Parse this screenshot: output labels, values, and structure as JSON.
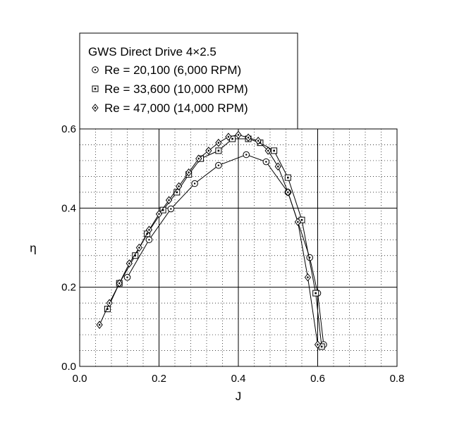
{
  "chart_data": {
    "type": "line",
    "xlabel": "J",
    "ylabel": "η",
    "xlim": [
      0,
      0.8
    ],
    "ylim": [
      0,
      0.6
    ],
    "xticks": [
      "0.0",
      "0.2",
      "0.4",
      "0.6",
      "0.8"
    ],
    "yticks": [
      "0.0",
      "0.2",
      "0.4",
      "0.6"
    ],
    "grid": true,
    "legend_position": "top-left",
    "legend_title": "GWS Direct Drive 4×2.5",
    "series": [
      {
        "name": "Re = 20,100 (6,000 RPM)",
        "marker": "circle",
        "x": [
          0.12,
          0.175,
          0.23,
          0.29,
          0.35,
          0.42,
          0.47,
          0.525,
          0.58,
          0.6,
          0.615
        ],
        "y": [
          0.225,
          0.32,
          0.398,
          0.462,
          0.508,
          0.535,
          0.517,
          0.44,
          0.275,
          0.185,
          0.055
        ]
      },
      {
        "name": "Re = 33,600 (10,000 RPM)",
        "marker": "square",
        "x": [
          0.07,
          0.1,
          0.14,
          0.17,
          0.21,
          0.245,
          0.275,
          0.305,
          0.35,
          0.385,
          0.425,
          0.455,
          0.49,
          0.525,
          0.56,
          0.595,
          0.61
        ],
        "y": [
          0.145,
          0.21,
          0.28,
          0.335,
          0.395,
          0.44,
          0.485,
          0.525,
          0.545,
          0.575,
          0.575,
          0.565,
          0.545,
          0.477,
          0.37,
          0.185,
          0.05
        ]
      },
      {
        "name": "Re = 47,000 (14,000 RPM)",
        "marker": "diamond",
        "x": [
          0.05,
          0.075,
          0.1,
          0.125,
          0.15,
          0.175,
          0.2,
          0.225,
          0.25,
          0.275,
          0.3,
          0.325,
          0.35,
          0.375,
          0.4,
          0.425,
          0.45,
          0.475,
          0.5,
          0.525,
          0.55,
          0.575,
          0.6
        ],
        "y": [
          0.105,
          0.16,
          0.21,
          0.26,
          0.3,
          0.345,
          0.385,
          0.42,
          0.455,
          0.49,
          0.525,
          0.545,
          0.565,
          0.58,
          0.585,
          0.578,
          0.57,
          0.545,
          0.505,
          0.44,
          0.365,
          0.225,
          0.055
        ]
      }
    ]
  }
}
